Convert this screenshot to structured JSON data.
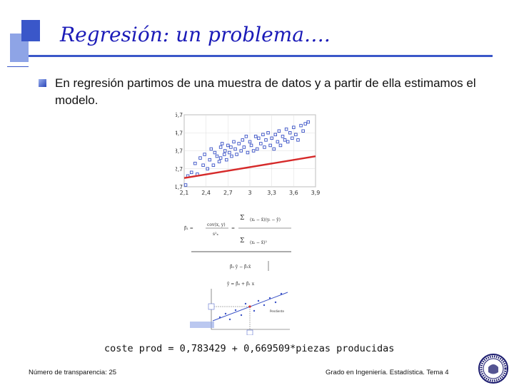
{
  "slide": {
    "title": "Regresión: un problema….",
    "bullet_text": "En regresión partimos de una muestra de datos y a partir de ella estimamos el modelo.",
    "fitted_equation": "coste prod = 0,783429 + 0,669509*piezas producidas"
  },
  "footer": {
    "left": "Número de transparencia: 25",
    "right": "Grado en Ingeniería. Estadística. Tema 4"
  },
  "chart_data": {
    "type": "scatter",
    "title": "",
    "xlabel": "",
    "ylabel": "",
    "xlim": [
      2.1,
      3.9
    ],
    "ylim": [
      1.7,
      5.7
    ],
    "x_ticks": [
      "2,1",
      "2,4",
      "2,7",
      "3",
      "3,3",
      "3,6",
      "3,9"
    ],
    "y_ticks": [
      "1,7",
      "2,7",
      "3,7",
      "4,7",
      "5,7"
    ],
    "grid": true,
    "colors": {
      "points": "#3a52c6",
      "fit_line": "#d62a2a"
    },
    "fit_line": {
      "intercept": 0.783429,
      "slope": 0.669509
    },
    "x": [
      2.12,
      2.15,
      2.2,
      2.25,
      2.28,
      2.32,
      2.36,
      2.38,
      2.42,
      2.45,
      2.47,
      2.5,
      2.52,
      2.55,
      2.58,
      2.6,
      2.6,
      2.62,
      2.65,
      2.66,
      2.68,
      2.7,
      2.72,
      2.74,
      2.75,
      2.78,
      2.8,
      2.82,
      2.85,
      2.88,
      2.9,
      2.92,
      2.95,
      2.97,
      3.0,
      3.02,
      3.05,
      3.08,
      3.1,
      3.12,
      3.15,
      3.18,
      3.2,
      3.22,
      3.25,
      3.28,
      3.3,
      3.33,
      3.35,
      3.38,
      3.4,
      3.42,
      3.45,
      3.48,
      3.5,
      3.52,
      3.55,
      3.58,
      3.6,
      3.63,
      3.66,
      3.7,
      3.73,
      3.76,
      3.8
    ],
    "y": [
      1.8,
      2.3,
      2.5,
      3.0,
      2.4,
      3.3,
      2.9,
      3.5,
      2.7,
      3.2,
      3.8,
      2.9,
      3.6,
      3.4,
      3.1,
      3.9,
      3.3,
      4.1,
      3.5,
      3.7,
      3.2,
      4.0,
      3.6,
      3.9,
      3.4,
      4.2,
      3.8,
      3.5,
      4.1,
      3.7,
      4.3,
      3.9,
      4.5,
      3.6,
      4.2,
      4.0,
      3.7,
      4.5,
      3.8,
      4.4,
      4.1,
      4.6,
      3.9,
      4.3,
      4.7,
      4.0,
      4.4,
      3.8,
      4.6,
      4.2,
      4.8,
      4.0,
      4.5,
      4.3,
      4.9,
      4.2,
      4.7,
      4.4,
      5.0,
      4.6,
      4.3,
      5.1,
      4.8,
      5.2,
      5.3
    ]
  }
}
